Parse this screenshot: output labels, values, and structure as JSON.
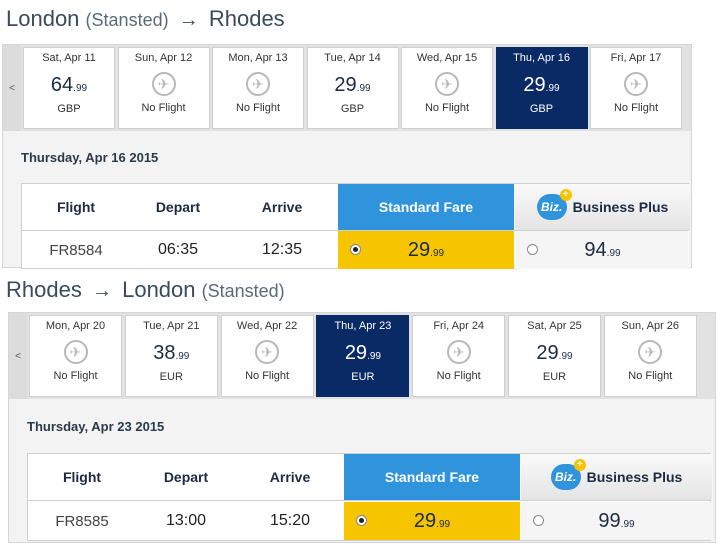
{
  "outbound": {
    "title": {
      "from": "London",
      "from_sub": "(Stansted)",
      "arrow": "→",
      "to": "Rhodes"
    },
    "prev_arrow": "<",
    "days": [
      {
        "label": "Sat, Apr 11",
        "price_main": "64",
        "price_cents": ".99",
        "currency": "GBP",
        "no_flight": false,
        "selected": false
      },
      {
        "label": "Sun, Apr 12",
        "no_flight_text": "No Flight",
        "no_flight": true,
        "selected": false
      },
      {
        "label": "Mon, Apr 13",
        "no_flight_text": "No Flight",
        "no_flight": true,
        "selected": false
      },
      {
        "label": "Tue, Apr 14",
        "price_main": "29",
        "price_cents": ".99",
        "currency": "GBP",
        "no_flight": false,
        "selected": false
      },
      {
        "label": "Wed, Apr 15",
        "no_flight_text": "No Flight",
        "no_flight": true,
        "selected": false
      },
      {
        "label": "Thu, Apr 16",
        "price_main": "29",
        "price_cents": ".99",
        "currency": "GBP",
        "no_flight": false,
        "selected": true
      },
      {
        "label": "Fri, Apr 17",
        "no_flight_text": "No Flight",
        "no_flight": true,
        "selected": false
      }
    ],
    "date_heading": "Thursday, Apr 16 2015",
    "table": {
      "col_flight": "Flight",
      "col_depart": "Depart",
      "col_arrive": "Arrive",
      "col_standard": "Standard Fare",
      "col_business": "Business Plus",
      "biz_badge": "Biz.",
      "biz_plus": "+",
      "row": {
        "flight": "FR8584",
        "depart": "06:35",
        "arrive": "12:35",
        "std_main": "29",
        "std_cents": ".99",
        "biz_main": "94",
        "biz_cents": ".99"
      }
    }
  },
  "inbound": {
    "title": {
      "from": "Rhodes",
      "arrow": "→",
      "to": "London",
      "to_sub": "(Stansted)"
    },
    "prev_arrow": "<",
    "days": [
      {
        "label": "Mon, Apr 20",
        "no_flight_text": "No Flight",
        "no_flight": true,
        "selected": false
      },
      {
        "label": "Tue, Apr 21",
        "price_main": "38",
        "price_cents": ".99",
        "currency": "EUR",
        "no_flight": false,
        "selected": false
      },
      {
        "label": "Wed, Apr 22",
        "no_flight_text": "No Flight",
        "no_flight": true,
        "selected": false
      },
      {
        "label": "Thu, Apr 23",
        "price_main": "29",
        "price_cents": ".99",
        "currency": "EUR",
        "no_flight": false,
        "selected": true
      },
      {
        "label": "Fri, Apr 24",
        "no_flight_text": "No Flight",
        "no_flight": true,
        "selected": false
      },
      {
        "label": "Sat, Apr 25",
        "price_main": "29",
        "price_cents": ".99",
        "currency": "EUR",
        "no_flight": false,
        "selected": false
      },
      {
        "label": "Sun, Apr 26",
        "no_flight_text": "No Flight",
        "no_flight": true,
        "selected": false
      }
    ],
    "date_heading": "Thursday, Apr 23 2015",
    "table": {
      "col_flight": "Flight",
      "col_depart": "Depart",
      "col_arrive": "Arrive",
      "col_standard": "Standard Fare",
      "col_business": "Business Plus",
      "biz_badge": "Biz.",
      "biz_plus": "+",
      "row": {
        "flight": "FR8585",
        "depart": "13:00",
        "arrive": "15:20",
        "std_main": "29",
        "std_cents": ".99",
        "biz_main": "99",
        "biz_cents": ".99"
      }
    }
  },
  "icons": {
    "no_flight": "plane-icon",
    "nav_prev": "chevron-left-icon"
  },
  "colors": {
    "selected_day": "#0a2a66",
    "standard_header": "#2f94dc",
    "standard_cell": "#f7c400"
  }
}
